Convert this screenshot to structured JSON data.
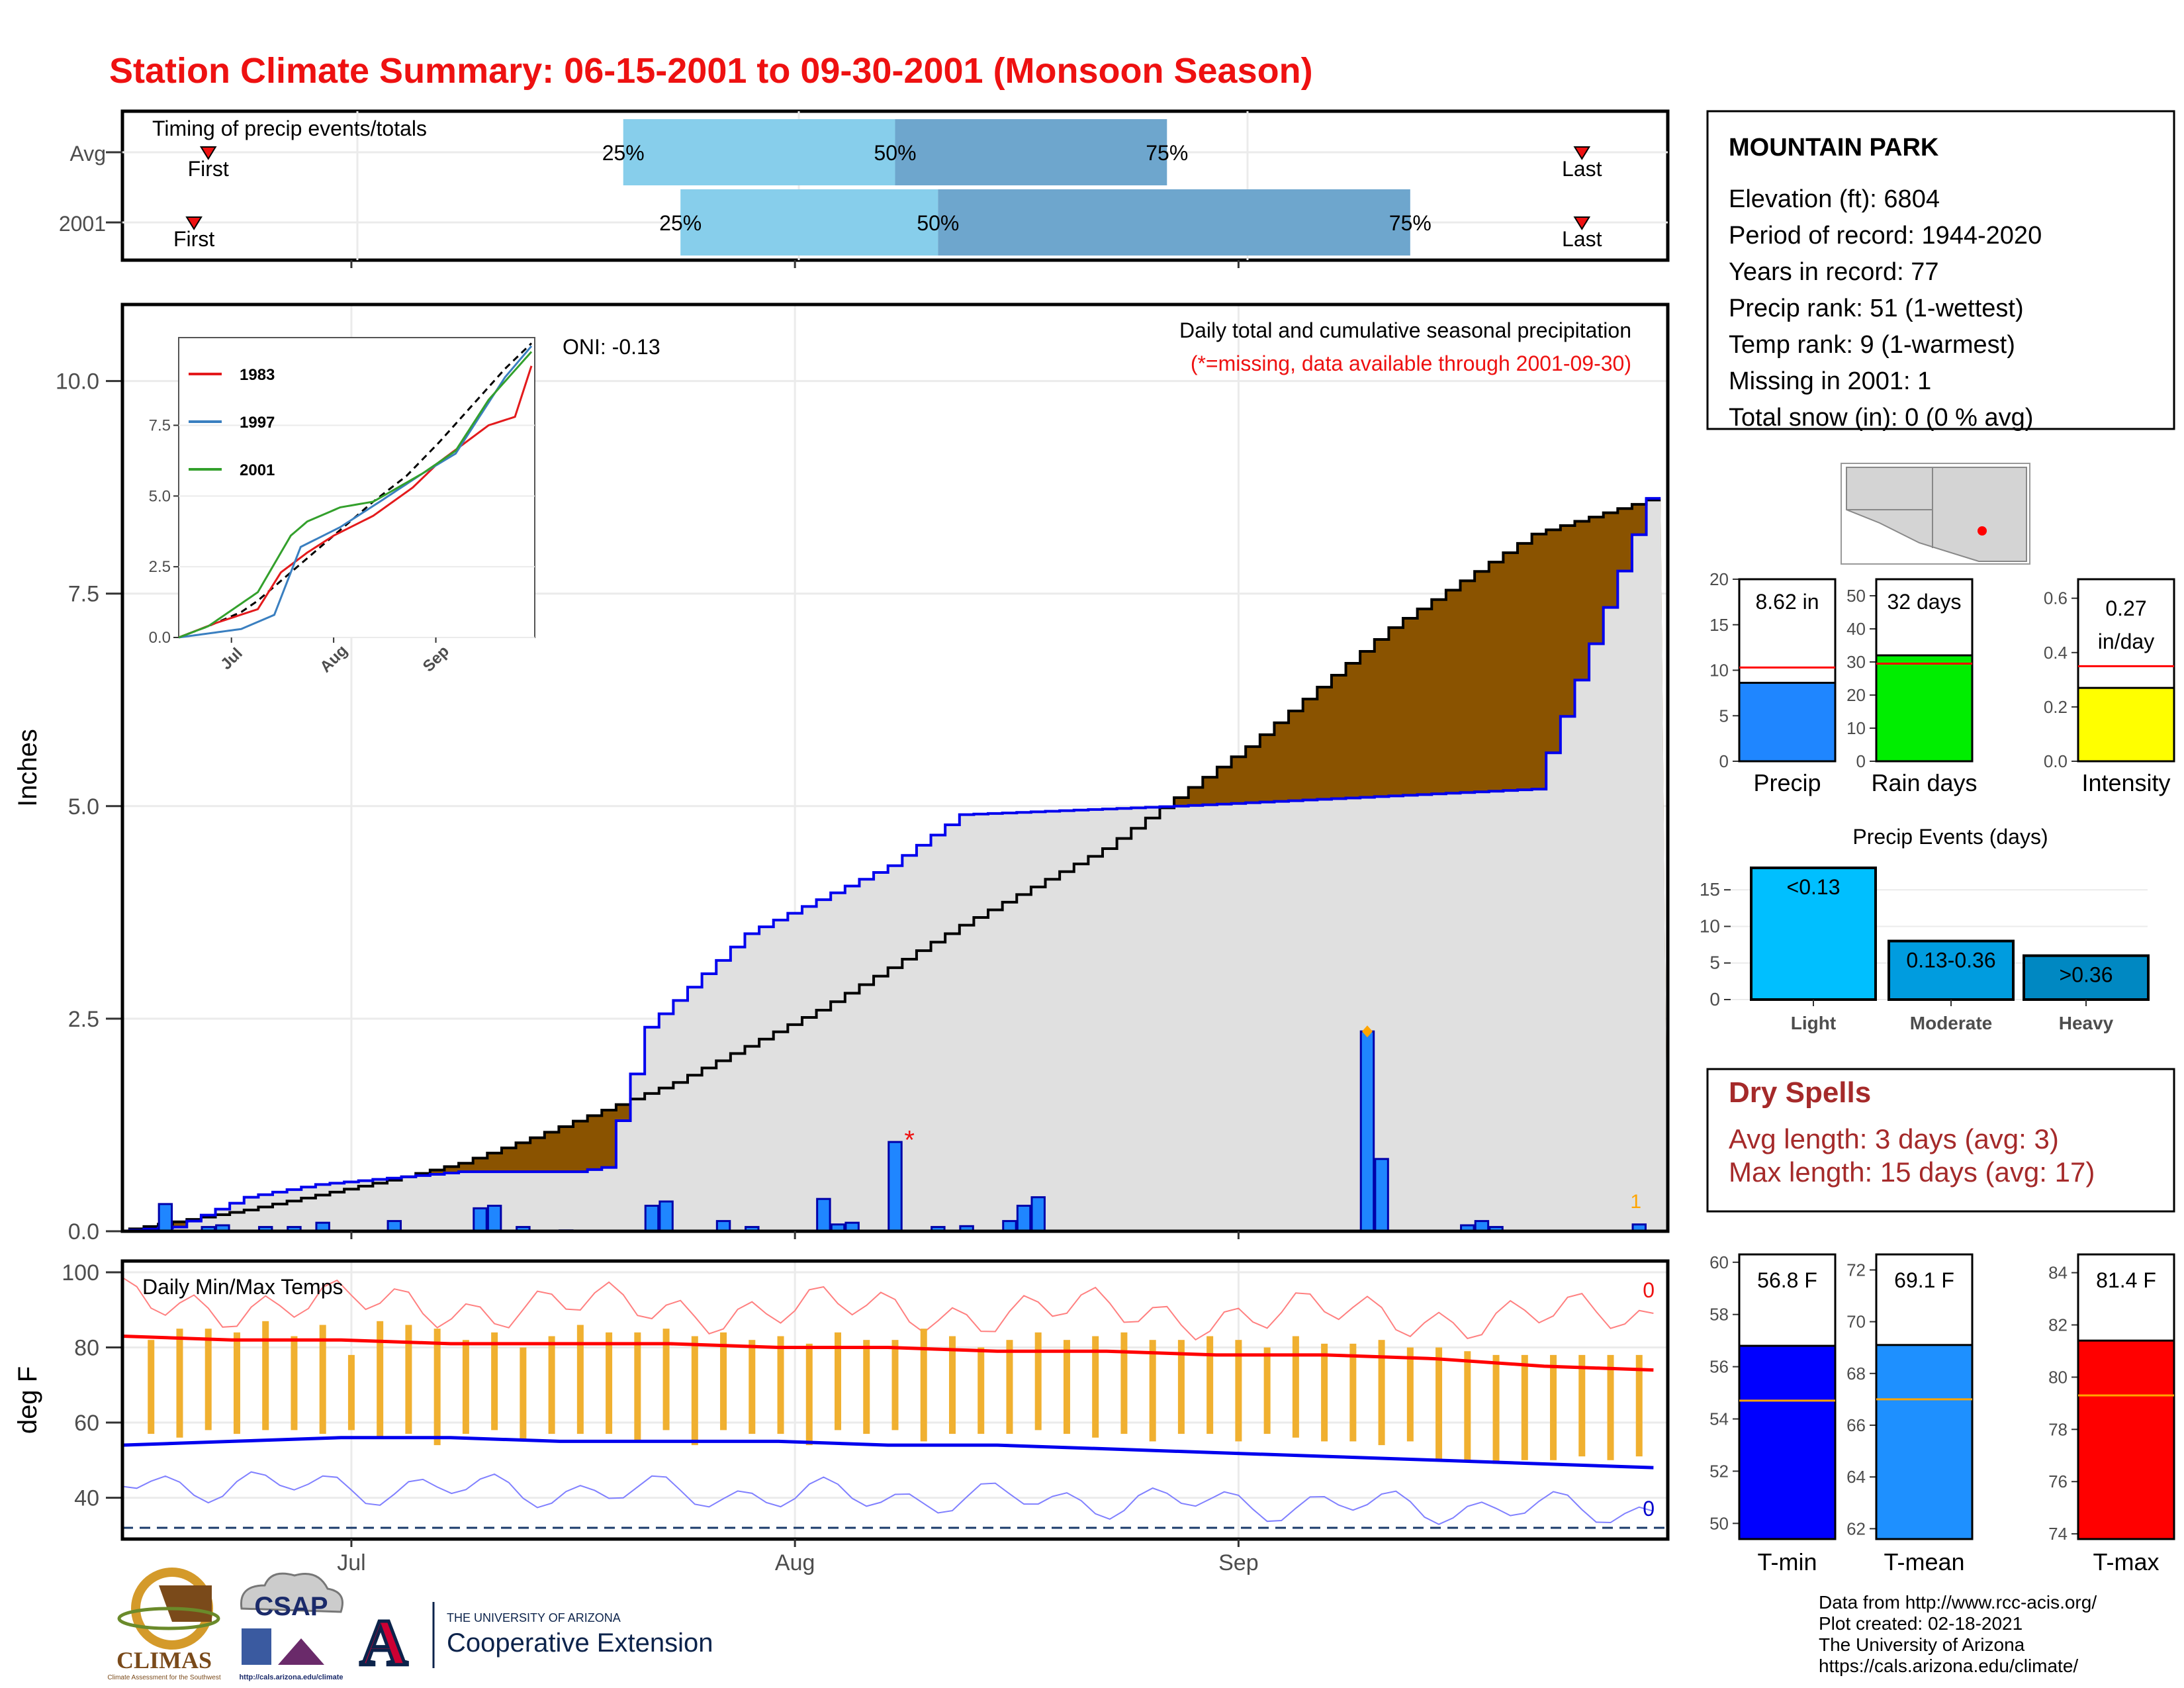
{
  "title": "Station Climate Summary: 06-15-2001 to 09-30-2001 (Monsoon Season)",
  "colors": {
    "title": "#ee1111",
    "avg_cum_fill": "#8a5300",
    "cur_cum_fill": "#e0e0e0",
    "bars": "#1f86ff",
    "light_blue": "#87ceeb",
    "mid_blue": "#6ea6cd",
    "tmin": "#0a0aff",
    "tmax": "#ff0a0a",
    "temp_bars": "#f0b030",
    "dry_spell": "#a52a2a"
  },
  "timing": {
    "title": "Timing of precip events/totals",
    "rows": [
      {
        "label": "Avg",
        "first_label": "First",
        "last_label": "Last",
        "first": "06-21",
        "last": "09-25",
        "p25": "07-20",
        "p50": "08-08",
        "p75": "08-27"
      },
      {
        "label": "2001",
        "first_label": "First",
        "last_label": "Last",
        "first": "06-20",
        "last": "09-25",
        "p25": "07-24",
        "p50": "08-11",
        "p75": "09-13"
      }
    ],
    "pct_labels": [
      "25%",
      "50%",
      "75%"
    ]
  },
  "x_axis": {
    "ticks": [
      "Jul",
      "Aug",
      "Sep"
    ],
    "tick_dates": [
      "07-01",
      "08-01",
      "09-01"
    ],
    "range": [
      "06-15",
      "09-30"
    ]
  },
  "precip_chart": {
    "ylabel": "Inches",
    "ytick_labels": [
      "0.0",
      "2.5",
      "5.0",
      "7.5",
      "10.0"
    ],
    "ylim": [
      0,
      10.9
    ],
    "note": "Daily total and cumulative seasonal precipitation",
    "note_missing": "(*=missing, data available through 2001-09-30)",
    "oni": "ONI: -0.13",
    "missing_count": "1",
    "missing_marker": "*",
    "missing_date": "08-09"
  },
  "inset": {
    "ytick_labels": [
      "0.0",
      "2.5",
      "5.0",
      "7.5"
    ],
    "xtick_labels": [
      "Jul",
      "Aug",
      "Sep"
    ],
    "legend": [
      {
        "name": "1983",
        "color": "#e31a1c"
      },
      {
        "name": "1997",
        "color": "#3a7fc0"
      },
      {
        "name": "2001",
        "color": "#33a02c"
      }
    ]
  },
  "station": {
    "name": "MOUNTAIN PARK",
    "lines": [
      "Elevation (ft): 6804",
      "Period of record: 1944-2020",
      "Years in record: 77",
      "Precip rank: 51 (1-wettest)",
      "Temp rank: 9 (1-warmest)",
      "Missing in 2001: 1",
      "Total snow (in): 0 (0 % avg)"
    ]
  },
  "summary_bars": [
    {
      "label": "Precip",
      "value_text": "8.62 in",
      "value": 8.62,
      "avg": 10.3,
      "ymax": 20,
      "ticks": [
        "0",
        "5",
        "10",
        "15",
        "20"
      ],
      "tick_values": [
        0,
        5,
        10,
        15,
        20
      ],
      "color": "#1f86ff"
    },
    {
      "label": "Rain days",
      "value_text": "32 days",
      "value": 32,
      "avg": 29.5,
      "ymax": 55,
      "ticks": [
        "0",
        "10",
        "20",
        "30",
        "40",
        "50"
      ],
      "tick_values": [
        0,
        10,
        20,
        30,
        40,
        50
      ],
      "color": "#00ee00"
    },
    {
      "label": "Intensity",
      "value_text": "0.27 in/day",
      "value_line1": "0.27",
      "value_line2": "in/day",
      "value": 0.27,
      "avg": 0.35,
      "ymax": 0.67,
      "ticks": [
        "0.0",
        "0.2",
        "0.4",
        "0.6"
      ],
      "tick_values": [
        0,
        0.2,
        0.4,
        0.6
      ],
      "color": "#ffff00"
    }
  ],
  "precip_events": {
    "title": "Precip Events (days)",
    "ticks": [
      "0",
      "5",
      "10",
      "15"
    ],
    "ymax": 19,
    "bars": [
      {
        "label": "Light",
        "inner": "<0.13",
        "value": 18,
        "color": "#00bfff"
      },
      {
        "label": "Moderate",
        "inner": "0.13-0.36",
        "value": 8,
        "color": "#009cdf"
      },
      {
        "label": "Heavy",
        "inner": ">0.36",
        "value": 6,
        "color": "#0088c2"
      }
    ]
  },
  "dry_spells": {
    "title": "Dry Spells",
    "avg": "Avg length: 3 days (avg: 3)",
    "max": "Max length: 15 days (avg: 17)"
  },
  "temp_chart": {
    "title": "Daily Min/Max Temps",
    "ylabel": "deg F",
    "ytick_labels": [
      "40",
      "60",
      "80",
      "100"
    ],
    "ylim": [
      29,
      103
    ],
    "freeze_line": 32,
    "count_top": "0",
    "count_bottom": "0"
  },
  "temp_bars": [
    {
      "label": "T-min",
      "value_text": "56.8 F",
      "value": 56.8,
      "avg": 54.7,
      "ymin": 49.4,
      "ymax": 60.3,
      "ticks": [
        "50",
        "52",
        "54",
        "56",
        "58",
        "60"
      ],
      "tick_values": [
        50,
        52,
        54,
        56,
        58,
        60
      ],
      "color": "#0000ff"
    },
    {
      "label": "T-mean",
      "value_text": "69.1 F",
      "value": 69.1,
      "avg": 67.0,
      "ymin": 61.6,
      "ymax": 72.6,
      "ticks": [
        "62",
        "64",
        "66",
        "68",
        "70",
        "72"
      ],
      "tick_values": [
        62,
        64,
        66,
        68,
        70,
        72
      ],
      "color": "#1e90ff"
    },
    {
      "label": "T-max",
      "value_text": "81.4 F",
      "value": 81.4,
      "avg": 79.3,
      "ymin": 73.8,
      "ymax": 84.7,
      "ticks": [
        "74",
        "76",
        "78",
        "80",
        "82",
        "84"
      ],
      "tick_values": [
        74,
        76,
        78,
        80,
        82,
        84
      ],
      "color": "#ff0000"
    }
  ],
  "footer": {
    "lines": [
      "Data from http://www.rcc-acis.org/",
      "Plot created: 02-18-2021",
      "The University of Arizona",
      "https://cals.arizona.edu/climate/"
    ],
    "logos": {
      "climas": "CLIMAS",
      "climas_sub": "Climate Assessment for the Southwest",
      "csap": "CSAP",
      "csap_sub": "http://cals.arizona.edu/climate",
      "ua_letter": "A",
      "ua_top": "THE UNIVERSITY OF ARIZONA",
      "ua_bottom": "Cooperative Extension"
    }
  },
  "chart_data": [
    {
      "type": "area",
      "name": "Daily total and cumulative seasonal precipitation",
      "start_date": "06-15",
      "end_date": "09-30",
      "x_unit": "day of season",
      "series": [
        {
          "name": "Avg cumulative",
          "x": [
            1,
            10,
            20,
            25,
            30,
            40,
            50,
            60,
            70,
            80,
            90,
            100,
            108
          ],
          "values": [
            0.0,
            0.25,
            0.6,
            0.8,
            1.1,
            1.75,
            2.6,
            3.6,
            4.5,
            5.7,
            7.1,
            8.2,
            8.6
          ]
        },
        {
          "name": "2001 cumulative",
          "x": [
            1,
            5,
            10,
            15,
            25,
            33,
            35,
            38,
            45,
            55,
            60,
            75,
            100,
            108
          ],
          "values": [
            0.0,
            0.05,
            0.4,
            0.55,
            0.7,
            0.7,
            0.75,
            2.4,
            3.5,
            4.3,
            4.9,
            5.0,
            5.2,
            8.62
          ]
        }
      ],
      "daily_precip": {
        "dates": [
          "06-18",
          "06-21",
          "06-22",
          "06-25",
          "06-27",
          "06-29",
          "07-04",
          "07-10",
          "07-11",
          "07-13",
          "07-16",
          "07-22",
          "07-23",
          "07-27",
          "07-29",
          "08-03",
          "08-04",
          "08-05",
          "08-08",
          "08-11",
          "08-13",
          "08-16",
          "08-17",
          "08-18",
          "09-10",
          "09-11",
          "09-17",
          "09-18",
          "09-19",
          "09-29"
        ],
        "values": [
          0.32,
          0.05,
          0.07,
          0.05,
          0.05,
          0.1,
          0.12,
          0.27,
          0.3,
          0.05,
          0.01,
          0.3,
          0.35,
          0.12,
          0.05,
          0.38,
          0.08,
          0.1,
          1.05,
          0.05,
          0.06,
          0.12,
          0.3,
          0.4,
          2.35,
          0.85,
          0.07,
          0.12,
          0.05,
          0.08
        ]
      }
    },
    {
      "type": "bar",
      "name": "Daily Min/Max Temps",
      "x_unit": "day of season",
      "temp_range": {
        "days": [
          3,
          5,
          7,
          9,
          11,
          13,
          15,
          17,
          19,
          21,
          23,
          25,
          27,
          29,
          31,
          33,
          35,
          37,
          39,
          41,
          43,
          45,
          47,
          49,
          51,
          53,
          55,
          57,
          59,
          61,
          63,
          65,
          67,
          69,
          71,
          73,
          75,
          77,
          79,
          81,
          83,
          85,
          87,
          89,
          91,
          93,
          95,
          97,
          99,
          101,
          103,
          105,
          107
        ],
        "tmin": [
          57,
          56,
          58,
          57,
          58,
          58,
          57,
          58,
          56,
          57,
          54,
          57,
          58,
          55,
          57,
          57,
          57,
          55,
          58,
          54,
          58,
          57,
          57,
          54,
          58,
          57,
          58,
          55,
          57,
          57,
          57,
          58,
          57,
          56,
          57,
          55,
          57,
          57,
          55,
          57,
          56,
          55,
          55,
          54,
          55,
          50,
          50,
          49,
          50,
          50,
          51,
          50,
          51
        ],
        "tmax": [
          82,
          85,
          85,
          84,
          87,
          83,
          86,
          78,
          87,
          86,
          85,
          82,
          84,
          80,
          83,
          86,
          84,
          84,
          85,
          83,
          84,
          82,
          83,
          81,
          84,
          82,
          82,
          85,
          83,
          80,
          82,
          84,
          82,
          83,
          84,
          82,
          82,
          83,
          82,
          80,
          83,
          81,
          81,
          82,
          80,
          80,
          79,
          78,
          78,
          78,
          78,
          78,
          78
        ]
      },
      "avg_max": [
        83,
        82,
        82,
        81,
        81,
        81,
        80,
        80,
        79,
        79,
        78,
        78,
        77,
        75,
        74
      ],
      "avg_min": [
        54,
        55,
        56,
        56,
        55,
        55,
        55,
        54,
        54,
        53,
        52,
        51,
        50,
        49,
        48
      ]
    }
  ]
}
